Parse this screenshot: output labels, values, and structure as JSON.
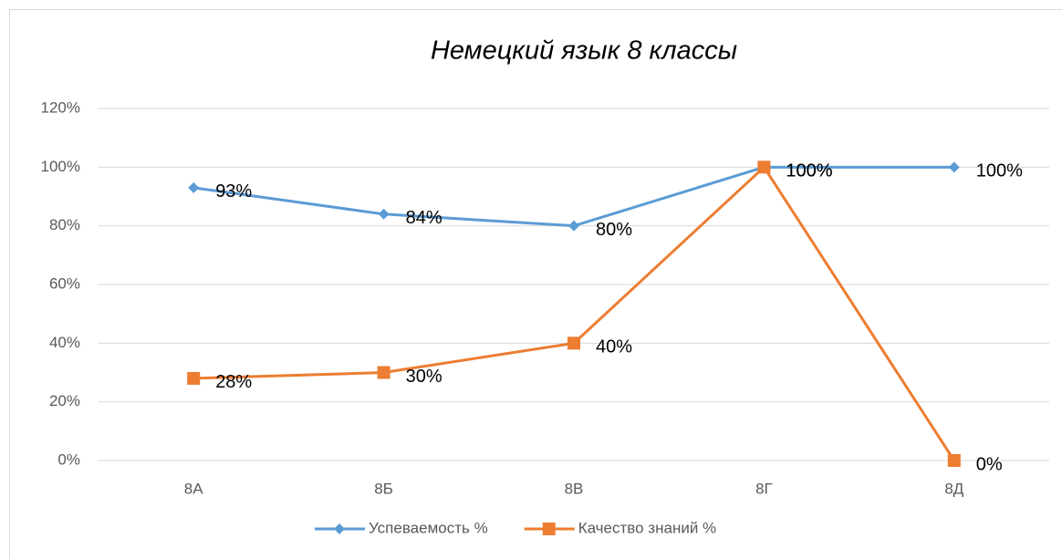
{
  "chart_data": {
    "type": "line",
    "title": "Немецкий язык 8 классы",
    "categories": [
      "8А",
      "8Б",
      "8В",
      "8Г",
      "8Д"
    ],
    "series": [
      {
        "name": "Успеваемость %",
        "color": "#5b9bd5",
        "marker": "diamond",
        "values": [
          93,
          84,
          80,
          100,
          100
        ],
        "value_labels": [
          "93%",
          "84%",
          "80%",
          "100%",
          "100%"
        ]
      },
      {
        "name": "Качество знаний %",
        "color": "#ed7d31",
        "marker": "square",
        "values": [
          28,
          30,
          40,
          100,
          0
        ],
        "value_labels": [
          "28%",
          "30%",
          "40%",
          "100%",
          "0%"
        ]
      }
    ],
    "ylim": [
      0,
      120
    ],
    "yticks": [
      {
        "value": 0,
        "label": "0%"
      },
      {
        "value": 20,
        "label": "20%"
      },
      {
        "value": 40,
        "label": "40%"
      },
      {
        "value": 60,
        "label": "60%"
      },
      {
        "value": 80,
        "label": "80%"
      },
      {
        "value": 100,
        "label": "100%"
      },
      {
        "value": 120,
        "label": "120%"
      }
    ],
    "grid": true,
    "legend": "bottom"
  }
}
